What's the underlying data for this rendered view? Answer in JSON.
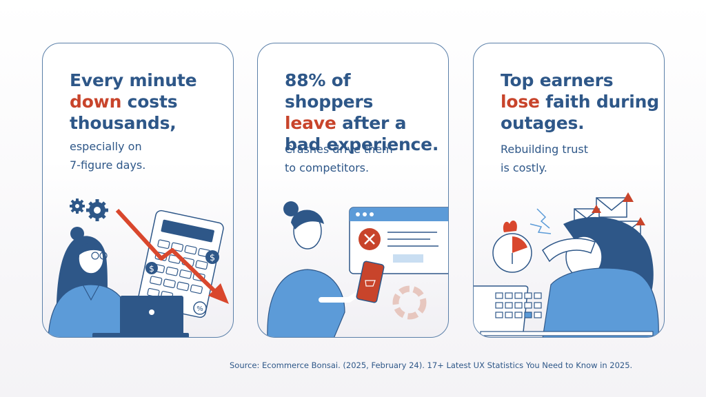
{
  "cards": [
    {
      "headline_lines": [
        [
          "Every minute"
        ],
        [
          "down",
          " costs"
        ],
        [
          "thousands,"
        ]
      ],
      "subtext_lines": [
        "especially on",
        "7-figure days."
      ]
    },
    {
      "headline_lines": [
        [
          "88% of shoppers"
        ],
        [
          "leave",
          " after a"
        ],
        [
          "bad experience."
        ]
      ],
      "subtext_lines": [
        "Crashes drive them",
        "to competitors."
      ]
    },
    {
      "headline_lines": [
        [
          "Top earners"
        ],
        [
          "lose",
          " faith during"
        ],
        [
          "outages."
        ]
      ],
      "subtext_lines": [
        "Rebuilding trust",
        "is costly."
      ]
    }
  ],
  "source": "Source: Ecommerce Bonsai. (2025, February 24). 17+ Latest UX Statistics You Need to Know in 2025.",
  "colors": {
    "primary_blue": "#2e5788",
    "accent_red": "#c8442b",
    "light_blue": "#5c9bd8",
    "card_border": "#5a7fa8"
  },
  "illustrations": [
    {
      "icons": [
        "gear-icon",
        "calculator-icon",
        "down-trend-arrow-icon",
        "dollar-coin-icon",
        "percent-coin-icon",
        "laptop-icon"
      ]
    },
    {
      "icons": [
        "browser-window-icon",
        "error-x-icon",
        "smartphone-cart-icon",
        "loading-spinner-icon"
      ]
    },
    {
      "icons": [
        "envelope-warning-icon",
        "stopwatch-fire-icon",
        "keypad-icon"
      ]
    }
  ]
}
